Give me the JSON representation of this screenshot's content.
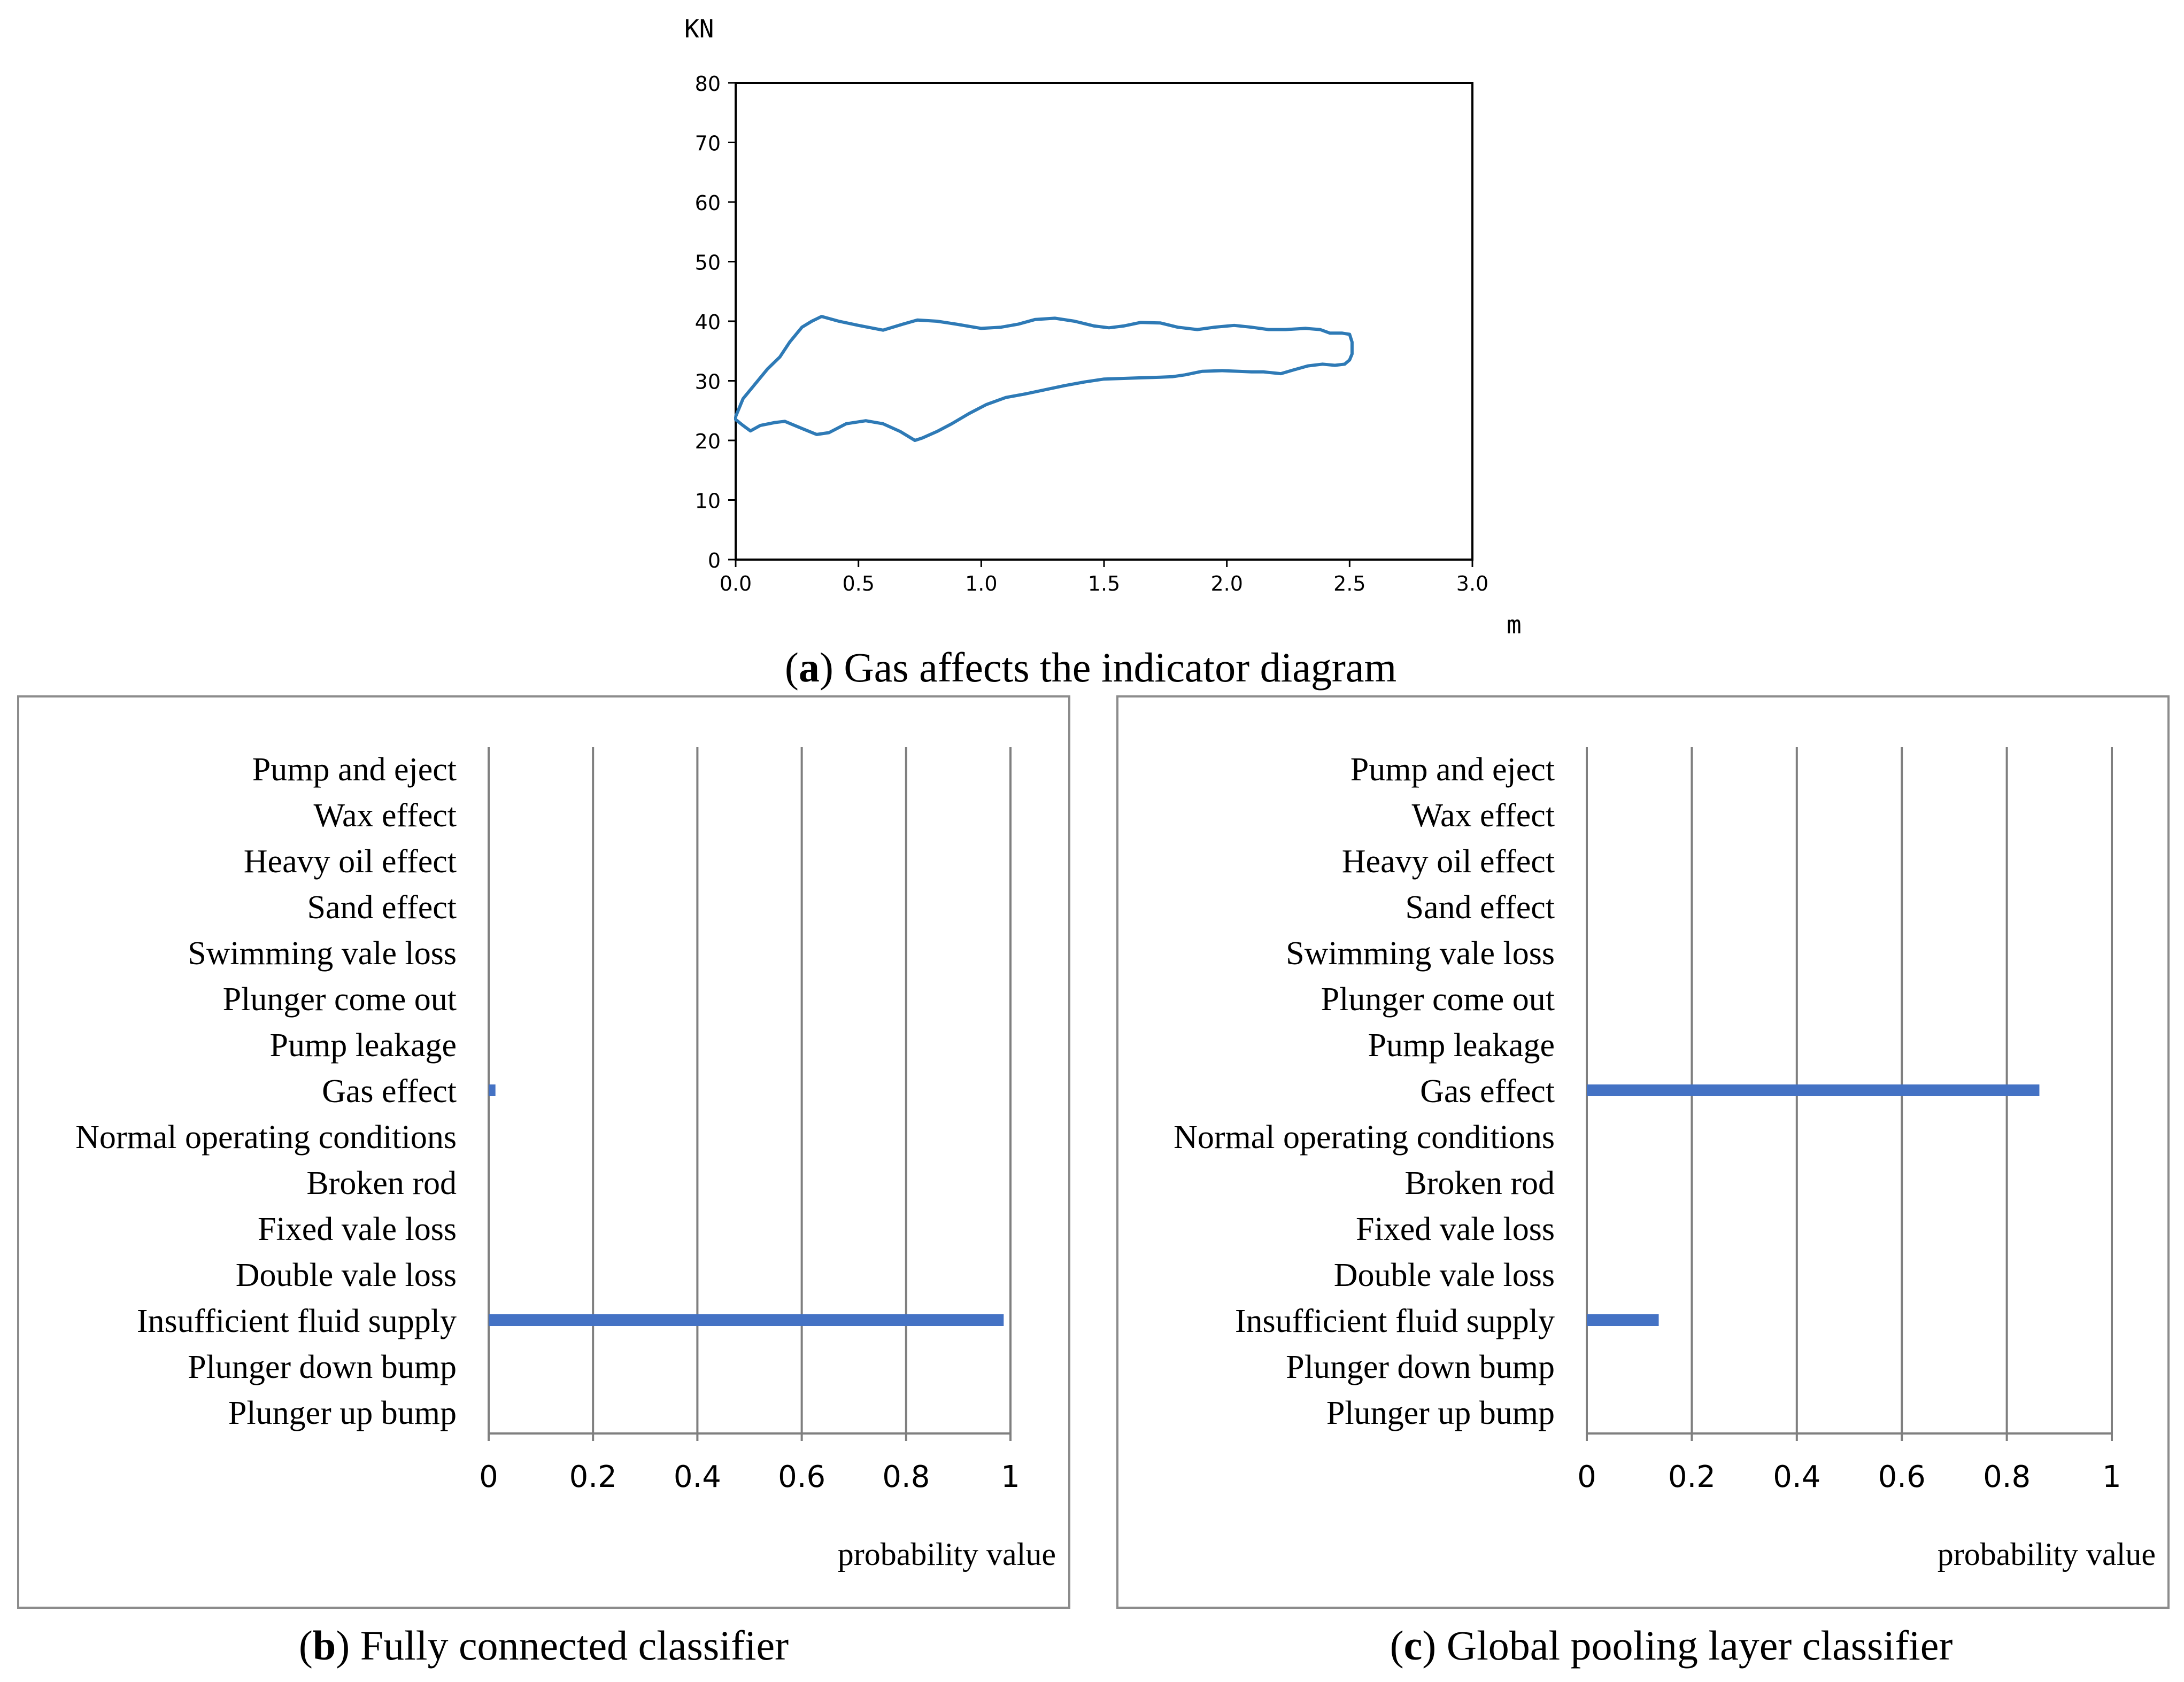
{
  "colors": {
    "line": "#2e7ab6",
    "bar": "#4472c4",
    "grid": "#7f7f7f",
    "axis": "#000000",
    "frame": "#8c8c8c"
  },
  "captions": {
    "a_letter": "a",
    "a_text": " Gas affects the indicator diagram",
    "b_letter": "b",
    "b_text": " Fully connected classifier",
    "c_letter": "c",
    "c_text": " Global pooling layer classifier"
  },
  "chart_data": [
    {
      "id": "a",
      "type": "line",
      "title": "",
      "xlabel": "m",
      "ylabel": "KN",
      "xlim": [
        0,
        3.0
      ],
      "ylim": [
        0,
        80
      ],
      "xticks": [
        "0.0",
        "0.5",
        "1.0",
        "1.5",
        "2.0",
        "2.5",
        "3.0"
      ],
      "yticks": [
        "0",
        "10",
        "20",
        "30",
        "40",
        "50",
        "60",
        "70",
        "80"
      ],
      "grid": false,
      "series": [
        {
          "name": "indicator diagram",
          "x": [
            0.0,
            0.03,
            0.08,
            0.13,
            0.18,
            0.22,
            0.27,
            0.31,
            0.35,
            0.42,
            0.5,
            0.6,
            0.68,
            0.74,
            0.82,
            0.9,
            1.0,
            1.08,
            1.15,
            1.22,
            1.3,
            1.38,
            1.46,
            1.52,
            1.58,
            1.65,
            1.73,
            1.8,
            1.88,
            1.95,
            2.03,
            2.1,
            2.17,
            2.24,
            2.32,
            2.38,
            2.42,
            2.47,
            2.5,
            2.51,
            2.51,
            2.5,
            2.48,
            2.44,
            2.39,
            2.33,
            2.27,
            2.22,
            2.15,
            2.1,
            2.05,
            1.98,
            1.9,
            1.83,
            1.78,
            1.73,
            1.65,
            1.58,
            1.5,
            1.42,
            1.34,
            1.26,
            1.18,
            1.1,
            1.02,
            0.95,
            0.88,
            0.82,
            0.76,
            0.73,
            0.67,
            0.6,
            0.53,
            0.45,
            0.38,
            0.33,
            0.27,
            0.2,
            0.16,
            0.1,
            0.06,
            0.03,
            0.0,
            0.0
          ],
          "y": [
            24.0,
            27.0,
            29.5,
            32.0,
            34.0,
            36.5,
            39.0,
            40.0,
            40.8,
            40.0,
            39.3,
            38.5,
            39.5,
            40.2,
            40.0,
            39.5,
            38.8,
            39.0,
            39.5,
            40.3,
            40.5,
            40.0,
            39.2,
            38.9,
            39.2,
            39.8,
            39.7,
            39.0,
            38.6,
            39.0,
            39.3,
            39.0,
            38.6,
            38.6,
            38.8,
            38.6,
            38.0,
            38.0,
            37.8,
            36.5,
            34.5,
            33.5,
            32.8,
            32.6,
            32.8,
            32.5,
            31.8,
            31.2,
            31.5,
            31.5,
            31.6,
            31.7,
            31.6,
            31.0,
            30.7,
            30.6,
            30.5,
            30.4,
            30.3,
            29.8,
            29.2,
            28.5,
            27.8,
            27.2,
            26.0,
            24.5,
            22.8,
            21.5,
            20.4,
            20.0,
            21.5,
            22.8,
            23.3,
            22.8,
            21.3,
            21.0,
            22.0,
            23.2,
            23.0,
            22.5,
            21.6,
            22.5,
            23.5,
            24.0
          ]
        }
      ]
    },
    {
      "id": "b",
      "type": "bar",
      "orientation": "horizontal",
      "xlabel": "probability value",
      "xlim": [
        0,
        1
      ],
      "xticks": [
        "0",
        "0.2",
        "0.4",
        "0.6",
        "0.8",
        "1"
      ],
      "grid": true,
      "categories": [
        "Pump and eject",
        "Wax effect",
        "Heavy oil effect",
        "Sand effect",
        "Swimming vale loss",
        "Plunger come out",
        "Pump leakage",
        "Gas effect",
        "Normal operating conditions",
        "Broken rod",
        "Fixed vale loss",
        "Double vale loss",
        "Insufficient fluid supply",
        "Plunger down bump",
        "Plunger up bump"
      ],
      "values": [
        0,
        0,
        0,
        0,
        0,
        0,
        0,
        0.013,
        0,
        0,
        0,
        0,
        0.987,
        0,
        0
      ]
    },
    {
      "id": "c",
      "type": "bar",
      "orientation": "horizontal",
      "xlabel": "probability value",
      "xlim": [
        0,
        1
      ],
      "xticks": [
        "0",
        "0.2",
        "0.4",
        "0.6",
        "0.8",
        "1"
      ],
      "grid": true,
      "categories": [
        "Pump and eject",
        "Wax effect",
        "Heavy oil effect",
        "Sand effect",
        "Swimming vale loss",
        "Plunger come out",
        "Pump leakage",
        "Gas effect",
        "Normal operating conditions",
        "Broken rod",
        "Fixed vale loss",
        "Double vale loss",
        "Insufficient fluid supply",
        "Plunger down bump",
        "Plunger up bump"
      ],
      "values": [
        0,
        0,
        0,
        0,
        0,
        0,
        0,
        0.862,
        0,
        0,
        0,
        0,
        0.137,
        0,
        0
      ]
    }
  ]
}
